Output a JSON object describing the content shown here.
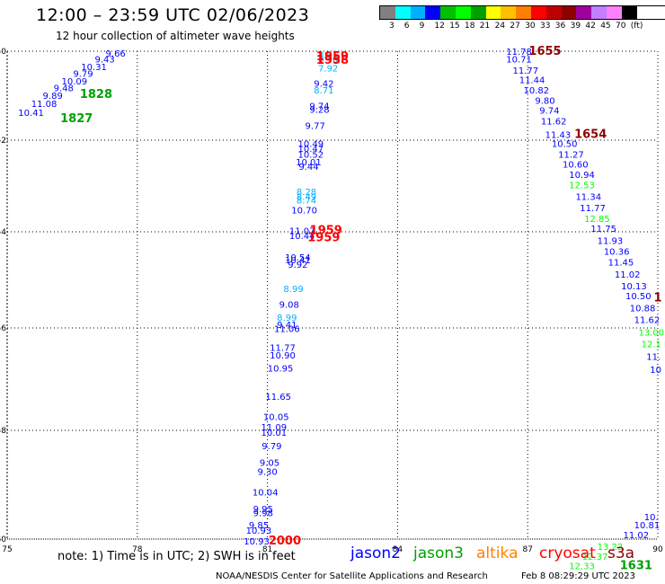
{
  "header": {
    "title": "12:00 – 23:59 UTC 02/06/2023",
    "subtitle": "12 hour collection of altimeter wave heights"
  },
  "scale": {
    "colors": [
      "#808080",
      "#00ffff",
      "#00b0ff",
      "#0000ff",
      "#00c000",
      "#00ff00",
      "#00a000",
      "#ffff00",
      "#ffc000",
      "#ff8000",
      "#ff0000",
      "#c00000",
      "#900000",
      "#a000a0",
      "#c080ff",
      "#ff80ff",
      "#000000"
    ],
    "labels": [
      "3",
      "6",
      "9",
      "12",
      "15",
      "18",
      "21",
      "24",
      "27",
      "30",
      "33",
      "36",
      "39",
      "42",
      "45",
      "70",
      "(ft)"
    ]
  },
  "map": {
    "lon_ticks": [
      "75",
      "78",
      "81",
      "84",
      "87",
      "90"
    ],
    "lat_ticks": [
      "-50",
      "-52",
      "-54",
      "-56",
      "-58",
      "-60"
    ]
  },
  "colors": {
    "jason2": "#0000ff",
    "jason3": "#00a000",
    "altika": "#ff8000",
    "cryosat": "#ff0000",
    "s3a": "#900000",
    "blue_mid": "#00b0ff",
    "green_light": "#00ff00"
  },
  "tracks": [
    {
      "lon": 75.55,
      "lat": -51.45,
      "v": "10.41",
      "c": "#0000ff"
    },
    {
      "lon": 75.85,
      "lat": -51.25,
      "v": "11.08",
      "c": "#0000ff"
    },
    {
      "lon": 76.05,
      "lat": -51.07,
      "v": "9.89",
      "c": "#0000ff"
    },
    {
      "lon": 76.3,
      "lat": -50.9,
      "v": "9.48",
      "c": "#0000ff"
    },
    {
      "lon": 76.55,
      "lat": -50.75,
      "v": "10.09",
      "c": "#0000ff"
    },
    {
      "lon": 76.75,
      "lat": -50.58,
      "v": "9.79",
      "c": "#0000ff"
    },
    {
      "lon": 77.0,
      "lat": -50.42,
      "v": "10.31",
      "c": "#0000ff"
    },
    {
      "lon": 77.25,
      "lat": -50.25,
      "v": "9.43",
      "c": "#0000ff"
    },
    {
      "lon": 77.5,
      "lat": -50.12,
      "v": "9.66",
      "c": "#0000ff"
    },
    {
      "lon": 82.4,
      "lat": -50.15,
      "v": "8.91",
      "c": "#00b0ff"
    },
    {
      "lon": 82.4,
      "lat": -50.25,
      "v": "8.70",
      "c": "#00b0ff"
    },
    {
      "lon": 82.4,
      "lat": -50.45,
      "v": "7.92",
      "c": "#00b0ff"
    },
    {
      "lon": 82.5,
      "lat": -50.2,
      "v": "1959",
      "c": "#ff0000",
      "ts": true
    },
    {
      "lon": 82.5,
      "lat": -50.28,
      "v": "1958",
      "c": "#ff0000",
      "ts": true
    },
    {
      "lon": 82.3,
      "lat": -50.8,
      "v": "9.42",
      "c": "#0000ff"
    },
    {
      "lon": 82.3,
      "lat": -50.95,
      "v": "8.71",
      "c": "#00b0ff"
    },
    {
      "lon": 82.2,
      "lat": -51.3,
      "v": "9.74",
      "c": "#0000ff"
    },
    {
      "lon": 82.2,
      "lat": -51.38,
      "v": "9.28",
      "c": "#0000ff"
    },
    {
      "lon": 82.1,
      "lat": -51.75,
      "v": "9.77",
      "c": "#0000ff"
    },
    {
      "lon": 82.0,
      "lat": -52.15,
      "v": "10.49",
      "c": "#0000ff"
    },
    {
      "lon": 82.0,
      "lat": -52.25,
      "v": "10.47",
      "c": "#0000ff"
    },
    {
      "lon": 82.0,
      "lat": -52.38,
      "v": "10.52",
      "c": "#0000ff"
    },
    {
      "lon": 81.95,
      "lat": -52.55,
      "v": "10.01",
      "c": "#0000ff"
    },
    {
      "lon": 81.95,
      "lat": -52.65,
      "v": "9.44",
      "c": "#0000ff"
    },
    {
      "lon": 81.9,
      "lat": -53.2,
      "v": "8.28",
      "c": "#00b0ff"
    },
    {
      "lon": 81.9,
      "lat": -53.3,
      "v": "8.49",
      "c": "#00b0ff"
    },
    {
      "lon": 81.9,
      "lat": -53.38,
      "v": "8.74",
      "c": "#00b0ff"
    },
    {
      "lon": 81.85,
      "lat": -53.6,
      "v": "10.70",
      "c": "#0000ff"
    },
    {
      "lon": 81.8,
      "lat": -54.05,
      "v": "11.07",
      "c": "#0000ff"
    },
    {
      "lon": 81.8,
      "lat": -54.15,
      "v": "10.44",
      "c": "#0000ff"
    },
    {
      "lon": 82.35,
      "lat": -54.05,
      "v": "1959",
      "c": "#ff0000",
      "ts": true
    },
    {
      "lon": 82.3,
      "lat": -54.2,
      "v": "1959",
      "c": "#ff0000",
      "ts": true
    },
    {
      "lon": 81.7,
      "lat": -54.6,
      "v": "10.54",
      "c": "#0000ff"
    },
    {
      "lon": 81.7,
      "lat": -54.65,
      "v": "10.41",
      "c": "#0000ff"
    },
    {
      "lon": 81.7,
      "lat": -54.75,
      "v": "9.92",
      "c": "#0000ff"
    },
    {
      "lon": 81.6,
      "lat": -55.25,
      "v": "8.99",
      "c": "#00b0ff"
    },
    {
      "lon": 81.5,
      "lat": -55.58,
      "v": "9.08",
      "c": "#0000ff"
    },
    {
      "lon": 81.45,
      "lat": -55.85,
      "v": "8.99",
      "c": "#00b0ff"
    },
    {
      "lon": 81.45,
      "lat": -56.0,
      "v": "9.41",
      "c": "#0000ff"
    },
    {
      "lon": 81.45,
      "lat": -56.08,
      "v": "11.06",
      "c": "#0000ff"
    },
    {
      "lon": 81.35,
      "lat": -56.45,
      "v": "11.77",
      "c": "#0000ff"
    },
    {
      "lon": 81.35,
      "lat": -56.6,
      "v": "10.90",
      "c": "#0000ff"
    },
    {
      "lon": 81.3,
      "lat": -56.85,
      "v": "10.95",
      "c": "#0000ff"
    },
    {
      "lon": 81.25,
      "lat": -57.4,
      "v": "11.65",
      "c": "#0000ff"
    },
    {
      "lon": 81.2,
      "lat": -57.8,
      "v": "10.05",
      "c": "#0000ff"
    },
    {
      "lon": 81.15,
      "lat": -58.0,
      "v": "11.09",
      "c": "#0000ff"
    },
    {
      "lon": 81.15,
      "lat": -58.1,
      "v": "10.01",
      "c": "#0000ff"
    },
    {
      "lon": 81.1,
      "lat": -58.35,
      "v": "9.79",
      "c": "#0000ff"
    },
    {
      "lon": 81.05,
      "lat": -58.65,
      "v": "9.05",
      "c": "#0000ff"
    },
    {
      "lon": 81.0,
      "lat": -58.82,
      "v": "9.30",
      "c": "#0000ff"
    },
    {
      "lon": 80.95,
      "lat": -59.2,
      "v": "10.04",
      "c": "#0000ff"
    },
    {
      "lon": 80.9,
      "lat": -59.5,
      "v": "9.95",
      "c": "#0000ff"
    },
    {
      "lon": 80.9,
      "lat": -59.58,
      "v": "9.98",
      "c": "#0000ff"
    },
    {
      "lon": 80.8,
      "lat": -59.8,
      "v": "9.85",
      "c": "#0000ff"
    },
    {
      "lon": 80.8,
      "lat": -59.9,
      "v": "10.93",
      "c": "#0000ff"
    },
    {
      "lon": 80.75,
      "lat": -60.1,
      "v": "10.93",
      "c": "#0000ff"
    },
    {
      "lon": 81.4,
      "lat": -60.1,
      "v": "2000",
      "c": "#ff0000",
      "ts": true
    },
    {
      "lon": 86.8,
      "lat": -50.08,
      "v": "11.78",
      "c": "#0000ff"
    },
    {
      "lon": 87.4,
      "lat": -50.08,
      "v": "1655",
      "c": "#900000",
      "ts": true
    },
    {
      "lon": 86.8,
      "lat": -50.25,
      "v": "10.71",
      "c": "#0000ff"
    },
    {
      "lon": 86.95,
      "lat": -50.5,
      "v": "11.77",
      "c": "#0000ff"
    },
    {
      "lon": 87.1,
      "lat": -50.72,
      "v": "11.44",
      "c": "#0000ff"
    },
    {
      "lon": 87.2,
      "lat": -50.95,
      "v": "10.82",
      "c": "#0000ff"
    },
    {
      "lon": 87.4,
      "lat": -51.18,
      "v": "9.80",
      "c": "#0000ff"
    },
    {
      "lon": 87.5,
      "lat": -51.4,
      "v": "9.74",
      "c": "#0000ff"
    },
    {
      "lon": 87.6,
      "lat": -51.65,
      "v": "11.62",
      "c": "#0000ff"
    },
    {
      "lon": 87.7,
      "lat": -51.95,
      "v": "11.43",
      "c": "#0000ff"
    },
    {
      "lon": 88.45,
      "lat": -51.95,
      "v": "1654",
      "c": "#900000",
      "ts": true
    },
    {
      "lon": 87.85,
      "lat": -52.15,
      "v": "10.50",
      "c": "#0000ff"
    },
    {
      "lon": 88.0,
      "lat": -52.38,
      "v": "11.27",
      "c": "#0000ff"
    },
    {
      "lon": 88.1,
      "lat": -52.6,
      "v": "10.60",
      "c": "#0000ff"
    },
    {
      "lon": 88.25,
      "lat": -52.82,
      "v": "10.94",
      "c": "#0000ff"
    },
    {
      "lon": 88.25,
      "lat": -53.05,
      "v": "12.53",
      "c": "#00ff00"
    },
    {
      "lon": 88.4,
      "lat": -53.3,
      "v": "11.34",
      "c": "#0000ff"
    },
    {
      "lon": 88.5,
      "lat": -53.55,
      "v": "11.77",
      "c": "#0000ff"
    },
    {
      "lon": 88.6,
      "lat": -53.78,
      "v": "12.85",
      "c": "#00ff00"
    },
    {
      "lon": 88.75,
      "lat": -54.0,
      "v": "11.75",
      "c": "#0000ff"
    },
    {
      "lon": 88.9,
      "lat": -54.25,
      "v": "11.93",
      "c": "#0000ff"
    },
    {
      "lon": 89.05,
      "lat": -54.48,
      "v": "10.36",
      "c": "#0000ff"
    },
    {
      "lon": 89.15,
      "lat": -54.7,
      "v": "11.45",
      "c": "#0000ff"
    },
    {
      "lon": 89.3,
      "lat": -54.95,
      "v": "11.02",
      "c": "#0000ff"
    },
    {
      "lon": 89.45,
      "lat": -55.2,
      "v": "10.13",
      "c": "#0000ff"
    },
    {
      "lon": 89.55,
      "lat": -55.4,
      "v": "10.50",
      "c": "#0000ff"
    },
    {
      "lon": 89.65,
      "lat": -55.65,
      "v": "10.88",
      "c": "#0000ff"
    },
    {
      "lon": 89.75,
      "lat": -55.9,
      "v": "11.62",
      "c": "#0000ff"
    },
    {
      "lon": 89.85,
      "lat": -56.15,
      "v": "13.00",
      "c": "#00ff00"
    },
    {
      "lon": 89.85,
      "lat": -56.38,
      "v": "12.1",
      "c": "#00ff00"
    },
    {
      "lon": 89.9,
      "lat": -56.62,
      "v": "11.",
      "c": "#0000ff"
    },
    {
      "lon": 89.95,
      "lat": -56.88,
      "v": "10",
      "c": "#0000ff"
    },
    {
      "lon": 90.0,
      "lat": -55.45,
      "v": "1",
      "c": "#900000",
      "ts": true
    },
    {
      "lon": 89.85,
      "lat": -59.65,
      "v": "10.",
      "c": "#0000ff"
    },
    {
      "lon": 89.75,
      "lat": -59.8,
      "v": "10.81",
      "c": "#0000ff"
    },
    {
      "lon": 89.5,
      "lat": -59.98,
      "v": "11.02",
      "c": "#0000ff"
    },
    {
      "lon": 88.9,
      "lat": -60.2,
      "v": "13.22",
      "c": "#00ff00"
    },
    {
      "lon": 88.55,
      "lat": -60.38,
      "v": "12.37",
      "c": "#00ff00"
    },
    {
      "lon": 88.25,
      "lat": -60.55,
      "v": "12.33",
      "c": "#00ff00"
    },
    {
      "lon": 89.5,
      "lat": -60.55,
      "v": "1631",
      "c": "#00a000",
      "ts": true
    },
    {
      "lon": 77.05,
      "lat": -51.05,
      "v": "1828",
      "c": "#00a000",
      "ts": true
    },
    {
      "lon": 76.6,
      "lat": -51.6,
      "v": "1827",
      "c": "#00a000",
      "ts": true
    }
  ],
  "footer": {
    "note": "note:  1) Time is in UTC;  2) SWH is in feet",
    "legend": [
      {
        "label": "jason2",
        "color": "#0000ff"
      },
      {
        "label": "jason3",
        "color": "#00a000"
      },
      {
        "label": "altika",
        "color": "#ff8000"
      },
      {
        "label": "cryosat",
        "color": "#ff0000"
      },
      {
        "label": "s3a",
        "color": "#900000"
      }
    ],
    "credit": "NOAA/NESDIS Center for Satellite Applications and Research",
    "issued": "Feb  8 08:29:29 UTC 2023"
  }
}
